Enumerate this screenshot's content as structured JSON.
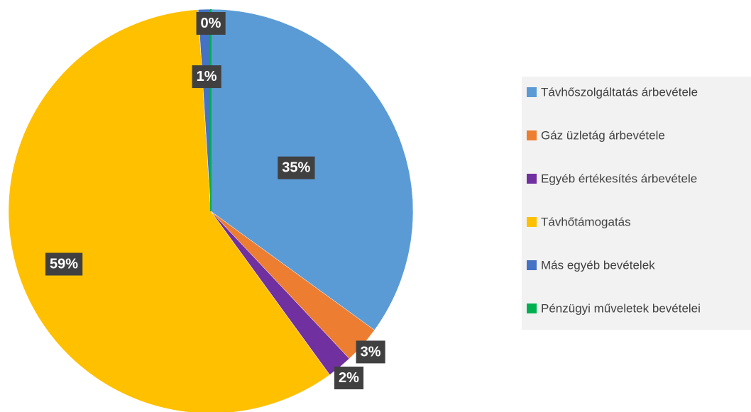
{
  "chart_data": {
    "type": "pie",
    "categories": [
      "Távhőszolgáltatás árbevétele",
      "Gáz üzletág  árbevétele",
      "Egyéb értékesítés árbevétele",
      "Távhőtámogatás",
      "Más egyéb bevételek",
      "Pénzügyi műveletek bevételei"
    ],
    "values": [
      35,
      3,
      2,
      59,
      1,
      0
    ],
    "value_labels": [
      "35%",
      "3%",
      "2%",
      "59%",
      "1%",
      "0%"
    ],
    "colors": [
      "#5b9bd5",
      "#ed7d31",
      "#7030a0",
      "#ffc000",
      "#4472c4",
      "#00b050"
    ],
    "legend": "right"
  }
}
